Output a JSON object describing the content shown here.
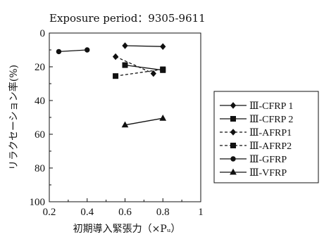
{
  "chart_data": {
    "type": "line",
    "title": "Exposure period：9305-9611",
    "xlabel": "初期導入緊張力（×Pᵤ）",
    "ylabel": "リラクセーション率(%)",
    "xlim": [
      0.2,
      1
    ],
    "ylim": [
      0,
      100
    ],
    "y_inverted": true,
    "x_ticks": [
      "0.2",
      "0.4",
      "0.6",
      "0.8",
      "1"
    ],
    "y_ticks": [
      "0",
      "20",
      "40",
      "60",
      "80",
      "100"
    ],
    "legend_position": "right",
    "series": [
      {
        "name": "Ⅲ-CFRP 1",
        "marker": "diamond",
        "line": "solid",
        "x": [
          0.6,
          0.8
        ],
        "y": [
          7.5,
          8
        ]
      },
      {
        "name": "Ⅲ-CFRP 2",
        "marker": "square",
        "line": "solid",
        "x": [
          0.6,
          0.8
        ],
        "y": [
          19,
          22
        ]
      },
      {
        "name": "Ⅲ-AFRP1",
        "marker": "diamond",
        "line": "dashed",
        "x": [
          0.55,
          0.75
        ],
        "y": [
          14,
          24
        ]
      },
      {
        "name": "Ⅲ-AFRP2",
        "marker": "square",
        "line": "dashed",
        "x": [
          0.55,
          0.8
        ],
        "y": [
          25.5,
          21.5
        ]
      },
      {
        "name": "Ⅲ-GFRP",
        "marker": "circle",
        "line": "solid",
        "x": [
          0.25,
          0.4
        ],
        "y": [
          11,
          10
        ]
      },
      {
        "name": "Ⅲ-VFRP",
        "marker": "triangle",
        "line": "solid",
        "x": [
          0.6,
          0.8
        ],
        "y": [
          54.5,
          50.5
        ]
      }
    ]
  }
}
